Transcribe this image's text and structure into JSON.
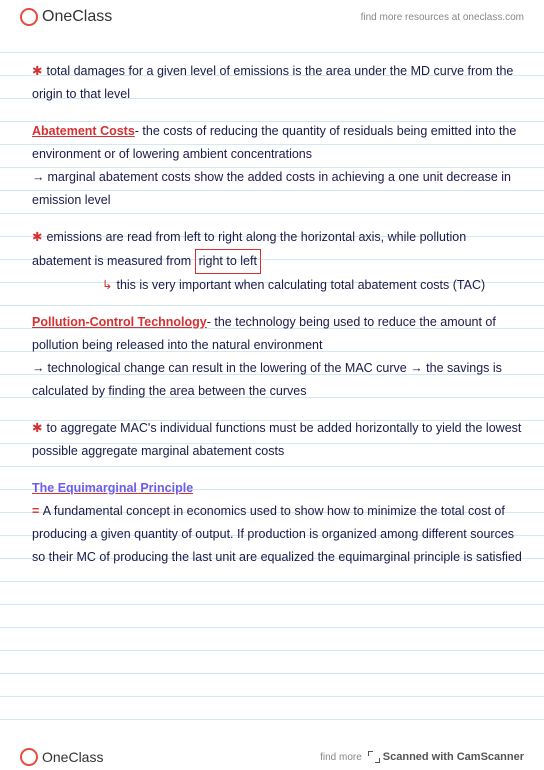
{
  "header": {
    "logo_text": "OneClass",
    "tagline": "find more resources at oneclass.com"
  },
  "notes": {
    "para1": "total damages for a given level of emissions is the area under the MD curve from the origin to that level",
    "term_abatement": "Abatement Costs",
    "def_abatement": "- the costs of reducing the quantity of residuals being emitted into the environment or of lowering ambient concentrations",
    "sub_abatement": "marginal abatement costs show the added costs in achieving a one unit decrease in emission level",
    "para2_a": "emissions are read from left to right along the horizontal axis, while pollution abatement is measured from ",
    "para2_box": "right to left",
    "para2_sub": "this is very important when calculating total abatement costs (TAC)",
    "term_pollution": "Pollution-Control Technology",
    "def_pollution": "- the technology being used to reduce the amount of pollution being released into the natural environment",
    "sub_pollution": "technological change can result in the lowering of the MAC curve → the savings is calculated by finding the area between the curves",
    "para3": "to aggregate MAC's individual functions must be added horizontally to yield the lowest possible aggregate marginal abatement costs",
    "term_equi": "The Equimarginal Principle",
    "def_equi": "A fundamental concept in economics used to show how to minimize the total cost of producing a given quantity of output. If production is organized among different sources so their MC of producing the last unit are equalized the equimarginal principle is satisfied"
  },
  "footer": {
    "logo_text": "OneClass",
    "tagline_a": "find more",
    "scanned": "Scanned with CamScanner"
  }
}
